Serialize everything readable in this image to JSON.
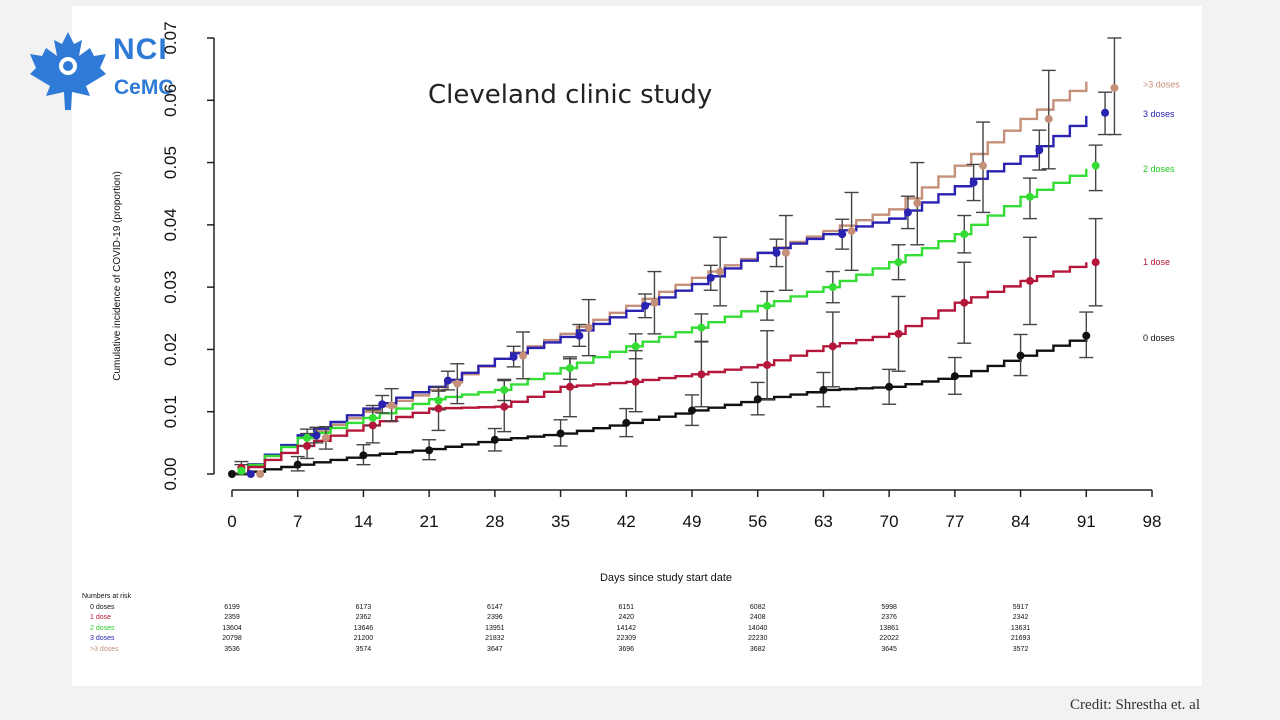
{
  "slide": {
    "title": "Cleveland clinic study",
    "credit": "Credit: Shrestha et. al",
    "logo": {
      "line1": "NCI",
      "line2": "CeMC"
    }
  },
  "chart_data": {
    "type": "line",
    "title": "",
    "xlabel": "Days since study start date",
    "ylabel": "Cumulative incidence of COVID-19 (proportion)",
    "xlim": [
      0,
      98
    ],
    "ylim": [
      0,
      0.07
    ],
    "xticks": [
      0,
      7,
      14,
      21,
      28,
      35,
      42,
      49,
      56,
      63,
      70,
      77,
      84,
      91,
      98
    ],
    "yticks": [
      "0.00",
      "0.01",
      "0.02",
      "0.03",
      "0.04",
      "0.05",
      "0.06",
      "0.07"
    ],
    "series": [
      {
        "name": "0 doses",
        "color": "#111111",
        "x": [
          0,
          7,
          14,
          21,
          28,
          35,
          42,
          49,
          56,
          63,
          70,
          77,
          84,
          91
        ],
        "y": [
          0.0,
          0.0015,
          0.003,
          0.004,
          0.0055,
          0.0065,
          0.0082,
          0.0102,
          0.012,
          0.0135,
          0.014,
          0.0157,
          0.019,
          0.0222
        ],
        "points": [
          {
            "x": 0,
            "y": 0.0,
            "lo": 0.0,
            "hi": 0.0
          },
          {
            "x": 7,
            "y": 0.0015,
            "lo": 0.0005,
            "hi": 0.0028
          },
          {
            "x": 14,
            "y": 0.003,
            "lo": 0.0015,
            "hi": 0.0047
          },
          {
            "x": 21,
            "y": 0.0038,
            "lo": 0.0023,
            "hi": 0.0055
          },
          {
            "x": 28,
            "y": 0.0055,
            "lo": 0.0037,
            "hi": 0.0073
          },
          {
            "x": 35,
            "y": 0.0065,
            "lo": 0.0045,
            "hi": 0.0087
          },
          {
            "x": 42,
            "y": 0.0082,
            "lo": 0.006,
            "hi": 0.0105
          },
          {
            "x": 49,
            "y": 0.0102,
            "lo": 0.0078,
            "hi": 0.0127
          },
          {
            "x": 56,
            "y": 0.012,
            "lo": 0.0095,
            "hi": 0.0147
          },
          {
            "x": 63,
            "y": 0.0135,
            "lo": 0.0108,
            "hi": 0.0163
          },
          {
            "x": 70,
            "y": 0.014,
            "lo": 0.0112,
            "hi": 0.0168
          },
          {
            "x": 77,
            "y": 0.0157,
            "lo": 0.0128,
            "hi": 0.0187
          },
          {
            "x": 84,
            "y": 0.019,
            "lo": 0.0158,
            "hi": 0.0224
          },
          {
            "x": 91,
            "y": 0.0222,
            "lo": 0.0187,
            "hi": 0.026
          }
        ]
      },
      {
        "name": "1 dose",
        "color": "#b5173a",
        "x": [
          0,
          7,
          14,
          21,
          28,
          35,
          42,
          49,
          56,
          63,
          70,
          77,
          84,
          91
        ],
        "y": [
          0.0,
          0.0045,
          0.0078,
          0.0105,
          0.0108,
          0.014,
          0.0148,
          0.016,
          0.0175,
          0.0205,
          0.0225,
          0.0275,
          0.031,
          0.034
        ],
        "points": [
          {
            "x": 1,
            "y": 0.001,
            "lo": 0.0,
            "hi": 0.002
          },
          {
            "x": 8,
            "y": 0.0045,
            "lo": 0.0025,
            "hi": 0.0065
          },
          {
            "x": 15,
            "y": 0.0078,
            "lo": 0.005,
            "hi": 0.011
          },
          {
            "x": 22,
            "y": 0.0105,
            "lo": 0.007,
            "hi": 0.014
          },
          {
            "x": 29,
            "y": 0.0108,
            "lo": 0.0068,
            "hi": 0.015
          },
          {
            "x": 36,
            "y": 0.014,
            "lo": 0.0092,
            "hi": 0.0185
          },
          {
            "x": 43,
            "y": 0.0148,
            "lo": 0.01,
            "hi": 0.0198
          },
          {
            "x": 50,
            "y": 0.016,
            "lo": 0.0108,
            "hi": 0.0212
          },
          {
            "x": 57,
            "y": 0.0175,
            "lo": 0.012,
            "hi": 0.023
          },
          {
            "x": 64,
            "y": 0.0205,
            "lo": 0.014,
            "hi": 0.026
          },
          {
            "x": 71,
            "y": 0.0225,
            "lo": 0.0165,
            "hi": 0.0285
          },
          {
            "x": 78,
            "y": 0.0275,
            "lo": 0.021,
            "hi": 0.034
          },
          {
            "x": 85,
            "y": 0.031,
            "lo": 0.024,
            "hi": 0.038
          },
          {
            "x": 92,
            "y": 0.034,
            "lo": 0.027,
            "hi": 0.041
          }
        ]
      },
      {
        "name": "2 doses",
        "color": "#33dd33",
        "x": [
          0,
          7,
          14,
          21,
          28,
          35,
          42,
          49,
          56,
          63,
          70,
          77,
          84,
          91
        ],
        "y": [
          0.0,
          0.0058,
          0.009,
          0.012,
          0.0135,
          0.017,
          0.0205,
          0.0235,
          0.027,
          0.03,
          0.034,
          0.0385,
          0.0445,
          0.049
        ],
        "points": [
          {
            "x": 1,
            "y": 0.0005,
            "lo": 0.0,
            "hi": 0.0015
          },
          {
            "x": 8,
            "y": 0.0058,
            "lo": 0.0045,
            "hi": 0.0072
          },
          {
            "x": 15,
            "y": 0.009,
            "lo": 0.0078,
            "hi": 0.0103
          },
          {
            "x": 22,
            "y": 0.0118,
            "lo": 0.0103,
            "hi": 0.0133
          },
          {
            "x": 29,
            "y": 0.0135,
            "lo": 0.0118,
            "hi": 0.0152
          },
          {
            "x": 36,
            "y": 0.017,
            "lo": 0.0152,
            "hi": 0.0188
          },
          {
            "x": 43,
            "y": 0.0205,
            "lo": 0.0185,
            "hi": 0.0225
          },
          {
            "x": 50,
            "y": 0.0235,
            "lo": 0.0213,
            "hi": 0.0257
          },
          {
            "x": 57,
            "y": 0.027,
            "lo": 0.0247,
            "hi": 0.0293
          },
          {
            "x": 64,
            "y": 0.03,
            "lo": 0.0275,
            "hi": 0.0325
          },
          {
            "x": 71,
            "y": 0.034,
            "lo": 0.0312,
            "hi": 0.0368
          },
          {
            "x": 78,
            "y": 0.0385,
            "lo": 0.0355,
            "hi": 0.0415
          },
          {
            "x": 85,
            "y": 0.0445,
            "lo": 0.041,
            "hi": 0.0475
          },
          {
            "x": 92,
            "y": 0.0495,
            "lo": 0.0455,
            "hi": 0.0528
          }
        ]
      },
      {
        "name": "3 doses",
        "color": "#2a22b0",
        "x": [
          0,
          7,
          14,
          21,
          28,
          35,
          42,
          49,
          56,
          63,
          70,
          77,
          84,
          91
        ],
        "y": [
          0.0,
          0.0062,
          0.0105,
          0.014,
          0.0185,
          0.022,
          0.0262,
          0.0305,
          0.0355,
          0.0385,
          0.041,
          0.0462,
          0.051,
          0.0575
        ],
        "points": [
          {
            "x": 2,
            "y": 0.0,
            "lo": 0.0,
            "hi": 0.0
          },
          {
            "x": 9,
            "y": 0.0062,
            "lo": 0.005,
            "hi": 0.0075
          },
          {
            "x": 16,
            "y": 0.0112,
            "lo": 0.0098,
            "hi": 0.0126
          },
          {
            "x": 23,
            "y": 0.015,
            "lo": 0.0135,
            "hi": 0.0165
          },
          {
            "x": 30,
            "y": 0.0188,
            "lo": 0.0172,
            "hi": 0.0205
          },
          {
            "x": 37,
            "y": 0.0222,
            "lo": 0.0205,
            "hi": 0.024
          },
          {
            "x": 44,
            "y": 0.027,
            "lo": 0.0251,
            "hi": 0.0289
          },
          {
            "x": 51,
            "y": 0.0315,
            "lo": 0.0295,
            "hi": 0.0335
          },
          {
            "x": 58,
            "y": 0.0355,
            "lo": 0.0333,
            "hi": 0.0377
          },
          {
            "x": 65,
            "y": 0.0385,
            "lo": 0.0361,
            "hi": 0.0409
          },
          {
            "x": 72,
            "y": 0.042,
            "lo": 0.0394,
            "hi": 0.0446
          },
          {
            "x": 79,
            "y": 0.0468,
            "lo": 0.0439,
            "hi": 0.0497
          },
          {
            "x": 86,
            "y": 0.052,
            "lo": 0.0488,
            "hi": 0.0552
          },
          {
            "x": 93,
            "y": 0.058,
            "lo": 0.0545,
            "hi": 0.0613
          }
        ]
      },
      {
        "name": ">3 doses",
        "color": "#c4907a",
        "x": [
          0,
          7,
          14,
          21,
          28,
          35,
          42,
          49,
          56,
          63,
          70,
          77,
          84,
          91
        ],
        "y": [
          0.0,
          0.0058,
          0.01,
          0.0135,
          0.0185,
          0.0225,
          0.027,
          0.0315,
          0.0355,
          0.039,
          0.0425,
          0.0495,
          0.057,
          0.063
        ],
        "points": [
          {
            "x": 3,
            "y": 0.0,
            "lo": 0.0,
            "hi": 0.0
          },
          {
            "x": 10,
            "y": 0.0058,
            "lo": 0.004,
            "hi": 0.0076
          },
          {
            "x": 17,
            "y": 0.011,
            "lo": 0.0085,
            "hi": 0.0137
          },
          {
            "x": 24,
            "y": 0.0145,
            "lo": 0.0113,
            "hi": 0.0177
          },
          {
            "x": 31,
            "y": 0.019,
            "lo": 0.0153,
            "hi": 0.0228
          },
          {
            "x": 38,
            "y": 0.0235,
            "lo": 0.019,
            "hi": 0.028
          },
          {
            "x": 45,
            "y": 0.0275,
            "lo": 0.0225,
            "hi": 0.0325
          },
          {
            "x": 52,
            "y": 0.0325,
            "lo": 0.027,
            "hi": 0.038
          },
          {
            "x": 59,
            "y": 0.0355,
            "lo": 0.0295,
            "hi": 0.0415
          },
          {
            "x": 66,
            "y": 0.039,
            "lo": 0.0327,
            "hi": 0.0452
          },
          {
            "x": 73,
            "y": 0.0435,
            "lo": 0.0368,
            "hi": 0.05
          },
          {
            "x": 80,
            "y": 0.0495,
            "lo": 0.042,
            "hi": 0.0565
          },
          {
            "x": 87,
            "y": 0.057,
            "lo": 0.049,
            "hi": 0.0648
          },
          {
            "x": 94,
            "y": 0.062,
            "lo": 0.0545,
            "hi": 0.07
          }
        ]
      }
    ],
    "legend": [
      {
        "label": ">3 doses",
        "color": "#c4907a",
        "y": 0.0625
      },
      {
        "label": "3 doses",
        "color": "#2a22b0",
        "y": 0.0578
      },
      {
        "label": "2 doses",
        "color": "#33dd33",
        "y": 0.049
      },
      {
        "label": "1 dose",
        "color": "#b5173a",
        "y": 0.034
      },
      {
        "label": "0 doses",
        "color": "#111111",
        "y": 0.0218
      }
    ],
    "risk_table": {
      "title": "Numbers at risk",
      "days": [
        0,
        14,
        28,
        42,
        56,
        70,
        84
      ],
      "rows": [
        {
          "label": "0 doses",
          "color": "#111111",
          "values": [
            "6199",
            "6173",
            "6147",
            "6151",
            "6082",
            "5998",
            "5917"
          ]
        },
        {
          "label": "1 dose",
          "color": "#b5173a",
          "values": [
            "2359",
            "2362",
            "2396",
            "2420",
            "2408",
            "2376",
            "2342"
          ]
        },
        {
          "label": "2 doses",
          "color": "#33cc33",
          "values": [
            "13604",
            "13646",
            "13951",
            "14142",
            "14040",
            "13861",
            "13631"
          ]
        },
        {
          "label": "3 doses",
          "color": "#2a22b0",
          "values": [
            "20798",
            "21200",
            "21832",
            "22309",
            "22230",
            "22022",
            "21693"
          ]
        },
        {
          "label": ">3 doses",
          "color": "#c4907a",
          "values": [
            "3536",
            "3574",
            "3647",
            "3696",
            "3682",
            "3645",
            "3572"
          ]
        }
      ]
    }
  }
}
